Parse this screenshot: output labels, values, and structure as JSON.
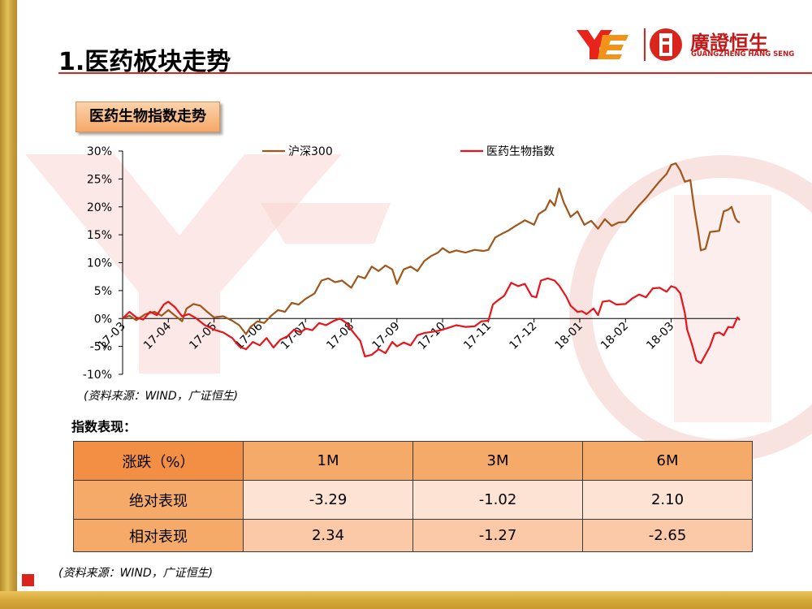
{
  "page": {
    "title": "1.医药板块走势",
    "section_label": "医药生物指数走势",
    "source_chart": "(资料来源：WIND，广证恒生)",
    "index_label": "指数表现：",
    "source_table": "(资料来源：WIND，广证恒生)"
  },
  "logo": {
    "brand_cn": "廣證恒生",
    "brand_en": "GUANGZHENG HANG SENG"
  },
  "colors": {
    "accent_red": "#d9251c",
    "gold": "#d6a93b",
    "hs300": "#a0561a",
    "pharma": "#e8141b",
    "table_header": "#f6aa6a"
  },
  "table": {
    "headers": [
      "涨跌（%）",
      "1M",
      "3M",
      "6M"
    ],
    "rows": [
      {
        "label": "绝对表现",
        "values": [
          "-3.29",
          "-1.02",
          "2.10"
        ]
      },
      {
        "label": "相对表现",
        "values": [
          "2.34",
          "-1.27",
          "-2.65"
        ]
      }
    ]
  },
  "chart_data": {
    "type": "line",
    "title": "",
    "xlabel": "",
    "ylabel": "",
    "ylim": [
      -10,
      30
    ],
    "y_ticks": [
      "30%",
      "25%",
      "20%",
      "15%",
      "10%",
      "5%",
      "0%",
      "-5%",
      "-10%"
    ],
    "x_ticks": [
      "17-03",
      "17-04",
      "17-05",
      "17-06",
      "17-07",
      "17-08",
      "17-09",
      "17-10",
      "17-11",
      "17-12",
      "18-01",
      "18-02",
      "18-03"
    ],
    "legend": "top",
    "series": [
      {
        "name": "沪深300",
        "color": "#a0561a",
        "points": [
          [
            0,
            0
          ],
          [
            0.15,
            0.5
          ],
          [
            0.3,
            -0.3
          ],
          [
            0.5,
            0.8
          ],
          [
            0.7,
            1.2
          ],
          [
            0.85,
            0.5
          ],
          [
            1,
            1.5
          ],
          [
            1.15,
            0.5
          ],
          [
            1.3,
            -0.5
          ],
          [
            1.4,
            1.8
          ],
          [
            1.55,
            2.6
          ],
          [
            1.7,
            2.3
          ],
          [
            1.85,
            1.2
          ],
          [
            2,
            0.2
          ],
          [
            2.2,
            0.4
          ],
          [
            2.4,
            -0.4
          ],
          [
            2.55,
            -1.2
          ],
          [
            2.7,
            -2.8
          ],
          [
            2.8,
            -1.5
          ],
          [
            2.95,
            -0.5
          ],
          [
            3.1,
            -0.8
          ],
          [
            3.25,
            0.5
          ],
          [
            3.4,
            1.5
          ],
          [
            3.55,
            1.2
          ],
          [
            3.7,
            2.8
          ],
          [
            3.85,
            2.5
          ],
          [
            4,
            3.5
          ],
          [
            4.2,
            4.5
          ],
          [
            4.35,
            6.8
          ],
          [
            4.5,
            7.2
          ],
          [
            4.65,
            6.5
          ],
          [
            4.8,
            6.8
          ],
          [
            5,
            5.5
          ],
          [
            5.15,
            7.6
          ],
          [
            5.3,
            7.2
          ],
          [
            5.45,
            9.3
          ],
          [
            5.6,
            8.5
          ],
          [
            5.75,
            9.5
          ],
          [
            5.9,
            8.8
          ],
          [
            6,
            6.2
          ],
          [
            6.15,
            8.8
          ],
          [
            6.3,
            9.3
          ],
          [
            6.45,
            8.5
          ],
          [
            6.6,
            10.3
          ],
          [
            6.75,
            11.2
          ],
          [
            6.9,
            11.8
          ],
          [
            7,
            12.6
          ],
          [
            7.15,
            11.8
          ],
          [
            7.3,
            12.2
          ],
          [
            7.5,
            11.8
          ],
          [
            7.7,
            12.3
          ],
          [
            7.9,
            12.1
          ],
          [
            8,
            12.3
          ],
          [
            8.15,
            14.5
          ],
          [
            8.3,
            15.2
          ],
          [
            8.45,
            15.8
          ],
          [
            8.6,
            16.6
          ],
          [
            8.8,
            17.6
          ],
          [
            9,
            16.8
          ],
          [
            9.1,
            18.7
          ],
          [
            9.25,
            19.5
          ],
          [
            9.35,
            21.2
          ],
          [
            9.45,
            20.2
          ],
          [
            9.55,
            23.3
          ],
          [
            9.65,
            20.8
          ],
          [
            9.8,
            18.2
          ],
          [
            9.95,
            19.2
          ],
          [
            10.1,
            16.8
          ],
          [
            10.25,
            17.5
          ],
          [
            10.4,
            16.1
          ],
          [
            10.55,
            17.8
          ],
          [
            10.7,
            16.6
          ],
          [
            10.85,
            17.2
          ],
          [
            11,
            17.3
          ],
          [
            11.15,
            18.8
          ],
          [
            11.3,
            20.3
          ],
          [
            11.45,
            21.6
          ],
          [
            11.6,
            23.1
          ],
          [
            11.75,
            24.6
          ],
          [
            11.9,
            25.9
          ],
          [
            12,
            27.5
          ],
          [
            12.1,
            27.8
          ],
          [
            12.2,
            26.5
          ],
          [
            12.3,
            24.5
          ],
          [
            12.42,
            24.8
          ],
          [
            12.5,
            20
          ],
          [
            12.6,
            15
          ],
          [
            12.65,
            12.2
          ],
          [
            12.75,
            12.5
          ],
          [
            12.85,
            15.5
          ],
          [
            12.95,
            15.6
          ],
          [
            13.05,
            15.7
          ],
          [
            13.15,
            19.2
          ],
          [
            13.25,
            19.5
          ],
          [
            13.32,
            20
          ],
          [
            13.4,
            18
          ],
          [
            13.45,
            17.4
          ],
          [
            13.5,
            17.2
          ]
        ]
      },
      {
        "name": "医药生物指数",
        "color": "#e8141b",
        "points": [
          [
            0,
            0
          ],
          [
            0.15,
            1.2
          ],
          [
            0.3,
            0.2
          ],
          [
            0.45,
            -0.2
          ],
          [
            0.6,
            1.2
          ],
          [
            0.75,
            0.6
          ],
          [
            0.9,
            2.5
          ],
          [
            1,
            3
          ],
          [
            1.15,
            2
          ],
          [
            1.3,
            0.4
          ],
          [
            1.45,
            0.8
          ],
          [
            1.6,
            0.1
          ],
          [
            1.8,
            -1.2
          ],
          [
            2,
            -2
          ],
          [
            2.2,
            -2.5
          ],
          [
            2.4,
            -3.5
          ],
          [
            2.55,
            -5
          ],
          [
            2.7,
            -5.5
          ],
          [
            2.85,
            -4.2
          ],
          [
            3,
            -4.8
          ],
          [
            3.15,
            -3.5
          ],
          [
            3.3,
            -5.2
          ],
          [
            3.45,
            -3.8
          ],
          [
            3.6,
            -3.2
          ],
          [
            3.75,
            -2
          ],
          [
            3.9,
            -2.5
          ],
          [
            4,
            -1.8
          ],
          [
            4.15,
            -2.1
          ],
          [
            4.3,
            -0.8
          ],
          [
            4.45,
            -1.2
          ],
          [
            4.6,
            -0.5
          ],
          [
            4.75,
            0
          ],
          [
            4.9,
            -0.8
          ],
          [
            5,
            -2
          ],
          [
            5.1,
            -3
          ],
          [
            5.2,
            -4
          ],
          [
            5.3,
            -6.8
          ],
          [
            5.45,
            -6.5
          ],
          [
            5.6,
            -5.5
          ],
          [
            5.75,
            -6.2
          ],
          [
            5.9,
            -4.2
          ],
          [
            6,
            -5
          ],
          [
            6.15,
            -4.3
          ],
          [
            6.3,
            -4.8
          ],
          [
            6.45,
            -3
          ],
          [
            6.6,
            -2.6
          ],
          [
            6.75,
            -2.4
          ],
          [
            6.9,
            -2.2
          ],
          [
            7,
            -2
          ],
          [
            7.15,
            -1.6
          ],
          [
            7.3,
            -1.2
          ],
          [
            7.5,
            -1.5
          ],
          [
            7.7,
            -1.4
          ],
          [
            7.85,
            -0.5
          ],
          [
            8,
            -0.4
          ],
          [
            8.1,
            2.5
          ],
          [
            8.2,
            3.2
          ],
          [
            8.35,
            4.1
          ],
          [
            8.5,
            6.4
          ],
          [
            8.65,
            5.8
          ],
          [
            8.8,
            6.2
          ],
          [
            8.95,
            4
          ],
          [
            9.05,
            3.8
          ],
          [
            9.15,
            6.8
          ],
          [
            9.3,
            7.2
          ],
          [
            9.45,
            6.8
          ],
          [
            9.55,
            5.9
          ],
          [
            9.7,
            4
          ],
          [
            9.8,
            2.3
          ],
          [
            9.95,
            1.2
          ],
          [
            10.05,
            1.3
          ],
          [
            10.15,
            0.8
          ],
          [
            10.3,
            1.8
          ],
          [
            10.4,
            0.6
          ],
          [
            10.5,
            3
          ],
          [
            10.65,
            3.2
          ],
          [
            10.8,
            2.5
          ],
          [
            11,
            2.6
          ],
          [
            11.15,
            3.6
          ],
          [
            11.3,
            4.3
          ],
          [
            11.45,
            3.8
          ],
          [
            11.6,
            5.4
          ],
          [
            11.75,
            5.5
          ],
          [
            11.9,
            4.8
          ],
          [
            12,
            5.8
          ],
          [
            12.1,
            5.5
          ],
          [
            12.2,
            4.5
          ],
          [
            12.3,
            1
          ],
          [
            12.35,
            -2
          ],
          [
            12.45,
            -4.5
          ],
          [
            12.55,
            -7.5
          ],
          [
            12.65,
            -8
          ],
          [
            12.75,
            -6.5
          ],
          [
            12.85,
            -5
          ],
          [
            12.95,
            -2.7
          ],
          [
            13.05,
            -2.5
          ],
          [
            13.15,
            -3
          ],
          [
            13.25,
            -1.5
          ],
          [
            13.35,
            -1.6
          ],
          [
            13.45,
            0.2
          ],
          [
            13.5,
            -0.3
          ]
        ]
      }
    ]
  }
}
